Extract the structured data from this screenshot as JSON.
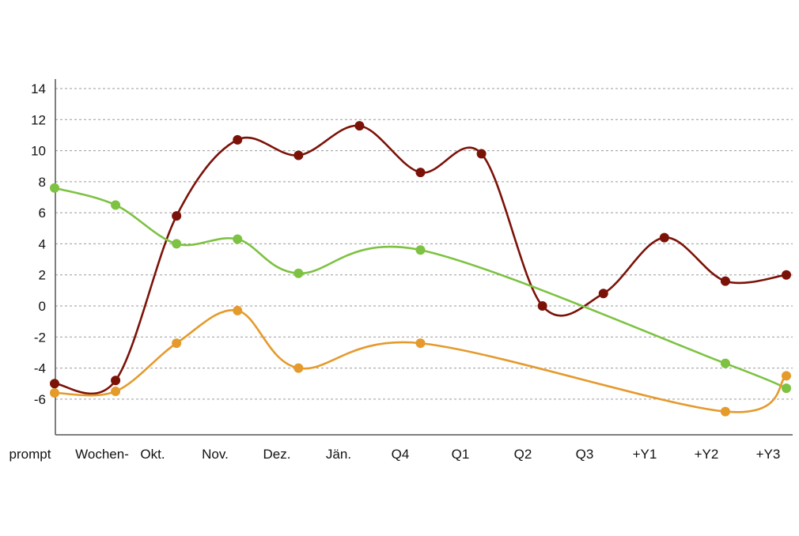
{
  "chart_data": {
    "type": "line",
    "title": "",
    "xlabel": "",
    "ylabel": "",
    "categories": [
      "prompt",
      "Wochen-",
      "Okt.",
      "Nov.",
      "Dez.",
      "Jän.",
      "Q4",
      "Q1",
      "Q2",
      "Q3",
      "+Y1",
      "+Y2",
      "+Y3"
    ],
    "y_ticks": [
      "14",
      "12",
      "10",
      "8",
      "6",
      "4",
      "2",
      "0",
      "-2",
      "-4",
      "-6"
    ],
    "ylim": [
      -8.5,
      14
    ],
    "grid": true,
    "smooth": true,
    "series": [
      {
        "color": "#7b1208",
        "points": [
          {
            "x": 0,
            "y": -5.0
          },
          {
            "x": 1,
            "y": -4.8
          },
          {
            "x": 2,
            "y": 5.8
          },
          {
            "x": 3,
            "y": 10.7
          },
          {
            "x": 4,
            "y": 9.7
          },
          {
            "x": 5,
            "y": 11.6
          },
          {
            "x": 6,
            "y": 8.6
          },
          {
            "x": 7,
            "y": 9.8
          },
          {
            "x": 8,
            "y": 0.0
          },
          {
            "x": 9,
            "y": 0.8
          },
          {
            "x": 10,
            "y": 4.4
          },
          {
            "x": 11,
            "y": 1.6
          },
          {
            "x": 12,
            "y": 2.0
          }
        ]
      },
      {
        "color": "#7dc242",
        "points": [
          {
            "x": 0,
            "y": 7.6
          },
          {
            "x": 1,
            "y": 6.5
          },
          {
            "x": 2,
            "y": 4.0
          },
          {
            "x": 3,
            "y": 4.3
          },
          {
            "x": 4,
            "y": 2.1
          },
          {
            "x": 6,
            "y": 3.6
          },
          {
            "x": 11,
            "y": -3.7
          },
          {
            "x": 12,
            "y": -5.3
          }
        ]
      },
      {
        "color": "#e59a2c",
        "points": [
          {
            "x": 0,
            "y": -5.6
          },
          {
            "x": 1,
            "y": -5.5
          },
          {
            "x": 2,
            "y": -2.4
          },
          {
            "x": 3,
            "y": -0.3
          },
          {
            "x": 4,
            "y": -4.0
          },
          {
            "x": 6,
            "y": -2.4
          },
          {
            "x": 11,
            "y": -6.8
          },
          {
            "x": 12,
            "y": -4.5
          }
        ]
      }
    ]
  }
}
